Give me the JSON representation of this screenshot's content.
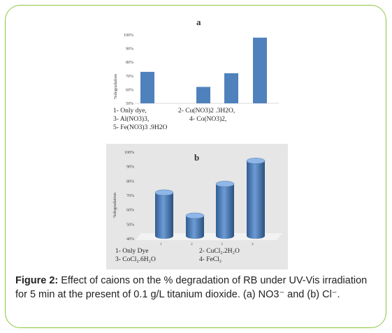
{
  "caption": {
    "label": "Figure 2:",
    "text": " Effect of caions on the % degradation of RB under UV-Vis irradiation for 5 min at the present of 0.1 g/L titanium dioxide.  (a) NO3⁻ and (b) Cl⁻."
  },
  "colors": {
    "bar": "#4f81bd",
    "frame": "#8cc63f",
    "panel_b_bg": "#e6e6e6"
  },
  "chart_data": [
    {
      "type": "bar",
      "title": "a",
      "ylabel": "%degradation",
      "ylim": [
        50,
        100
      ],
      "yticks": [
        "100%",
        "90%",
        "80%",
        "70%",
        "60%",
        "50%"
      ],
      "categories": [
        "1",
        "2",
        "3",
        "4",
        "5"
      ],
      "values": [
        73,
        null,
        62,
        72,
        98
      ],
      "legend": [
        "1- Only dye,",
        "2- Cu(NO3)2 .3H2O,",
        "3- Al(NO3)3,",
        "4- Co(NO3)2,",
        "5- Fe(NO3)3 .9H2O"
      ]
    },
    {
      "type": "bar",
      "title": "b",
      "ylabel": "%degradation",
      "ylim": [
        40,
        100
      ],
      "yticks": [
        "100%",
        "90%",
        "80%",
        "70%",
        "60%",
        "50%",
        "40%"
      ],
      "categories": [
        "1",
        "2",
        "3",
        "4"
      ],
      "values": [
        72,
        56,
        78,
        94
      ],
      "legend": [
        "1- Only Dye",
        "2- CuCl₂.2H₂O",
        "3- CoCl₂.6H₂O",
        "4- FeCl₂"
      ]
    }
  ]
}
